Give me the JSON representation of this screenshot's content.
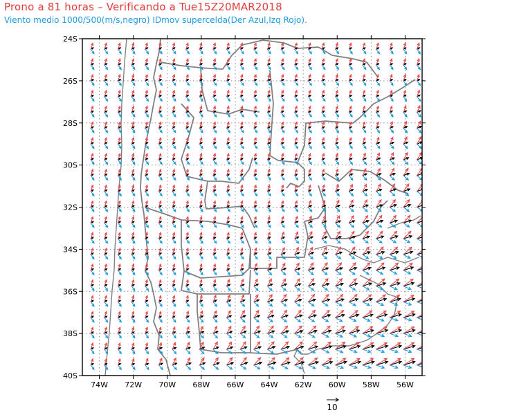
{
  "title": "Prono a 81 horas – Verificando a Tue15Z20MAR2018",
  "subtitle": "Viento medio 1000/500(m/s,negro) IDmov supercelda(Der Azul,Izq Rojo).",
  "reference_vector_label": "10",
  "colors": {
    "title": "#e23b3b",
    "subtitle": "#1e9be0",
    "mean_wind": "#000000",
    "right_mover": "#1e9be0",
    "left_mover": "#e8484b",
    "borders": "#808080",
    "grid": "#8a8a8a"
  },
  "axes": {
    "lat_labels": [
      "24S",
      "26S",
      "28S",
      "30S",
      "32S",
      "34S",
      "36S",
      "38S",
      "40S"
    ],
    "lon_labels": [
      "74W",
      "72W",
      "70W",
      "68W",
      "66W",
      "64W",
      "62W",
      "60W",
      "58W",
      "56W"
    ],
    "lat_range": [
      -40,
      -24
    ],
    "lon_range": [
      -75,
      -55
    ]
  }
}
